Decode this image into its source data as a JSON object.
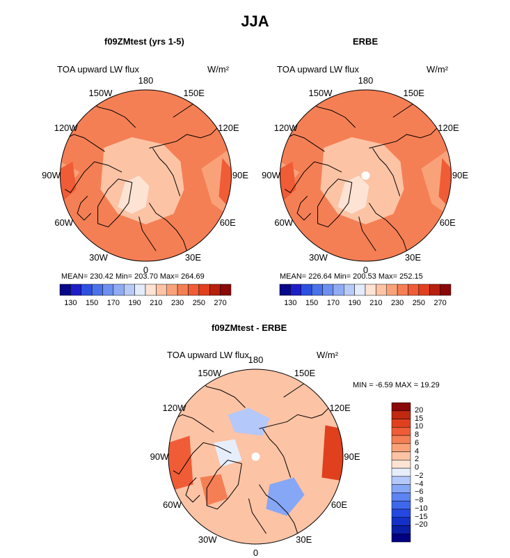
{
  "title": "JJA",
  "panels": [
    {
      "id": "model",
      "subtitle": "f09ZMtest (yrs 1-5)",
      "variable": "TOA upward LW flux",
      "units": "W/m²",
      "stats_text": "MEAN= 230.42   Min= 203.70   Max= 264.69",
      "has_pole_hole": false,
      "dominant_level": 9
    },
    {
      "id": "obs",
      "subtitle": "ERBE",
      "variable": "TOA upward LW flux",
      "units": "W/m²",
      "stats_text": "MEAN= 226.64   Min= 200.53   Max= 252.15",
      "has_pole_hole": true,
      "dominant_level": 9
    },
    {
      "id": "diff",
      "subtitle": "f09ZMtest - ERBE",
      "variable": "TOA upward LW flux",
      "units": "W/m²",
      "stats_text": "MIN =   -6.59  MAX =   19.29",
      "has_pole_hole": true
    }
  ],
  "map_labels": [
    "180",
    "150E",
    "120E",
    "90E",
    "60E",
    "30E",
    "0",
    "30W",
    "60W",
    "90W",
    "120W",
    "150W"
  ],
  "abs_colorbar": {
    "colors": [
      "#08088a",
      "#1e1ec8",
      "#2e50e0",
      "#4a72ea",
      "#6c8ff0",
      "#90abf4",
      "#b8cbf7",
      "#e4ecfb",
      "#fde3d3",
      "#fcc3a5",
      "#f9a27a",
      "#f57f55",
      "#f05c36",
      "#e0401e",
      "#b8200e",
      "#8a0808"
    ],
    "ticks": [
      "130",
      "150",
      "170",
      "190",
      "210",
      "230",
      "250",
      "270"
    ]
  },
  "diff_colorbar": {
    "colors": [
      "#000080",
      "#0a1ea6",
      "#1430c8",
      "#2448e0",
      "#3e68ec",
      "#5c84f2",
      "#86a6f6",
      "#b4c8fa",
      "#e6eefc",
      "#fde3d3",
      "#fcc3a5",
      "#f9a27a",
      "#f57f55",
      "#f05c36",
      "#e0401e",
      "#c02810",
      "#8a0808"
    ],
    "ticks": [
      "20",
      "15",
      "10",
      "8",
      "6",
      "4",
      "2",
      "0",
      "−2",
      "−4",
      "−6",
      "−8",
      "−10",
      "−15",
      "−20"
    ]
  },
  "chart_data": [
    {
      "type": "heatmap",
      "title": "f09ZMtest (yrs 1-5)",
      "projection": "north polar stereographic",
      "variable": "TOA upward LW flux",
      "units": "W/m²",
      "mean": 230.42,
      "min": 203.7,
      "max": 264.69,
      "levels": [
        130,
        140,
        150,
        160,
        170,
        180,
        190,
        200,
        210,
        220,
        230,
        240,
        250,
        260,
        270
      ]
    },
    {
      "type": "heatmap",
      "title": "ERBE",
      "projection": "north polar stereographic",
      "variable": "TOA upward LW flux",
      "units": "W/m²",
      "mean": 226.64,
      "min": 200.53,
      "max": 252.15,
      "levels": [
        130,
        140,
        150,
        160,
        170,
        180,
        190,
        200,
        210,
        220,
        230,
        240,
        250,
        260,
        270
      ]
    },
    {
      "type": "heatmap",
      "title": "f09ZMtest - ERBE",
      "projection": "north polar stereographic",
      "variable": "TOA upward LW flux",
      "units": "W/m²",
      "min": -6.59,
      "max": 19.29,
      "levels": [
        -20,
        -15,
        -10,
        -8,
        -6,
        -4,
        -2,
        0,
        2,
        4,
        6,
        8,
        10,
        15,
        20
      ]
    }
  ]
}
